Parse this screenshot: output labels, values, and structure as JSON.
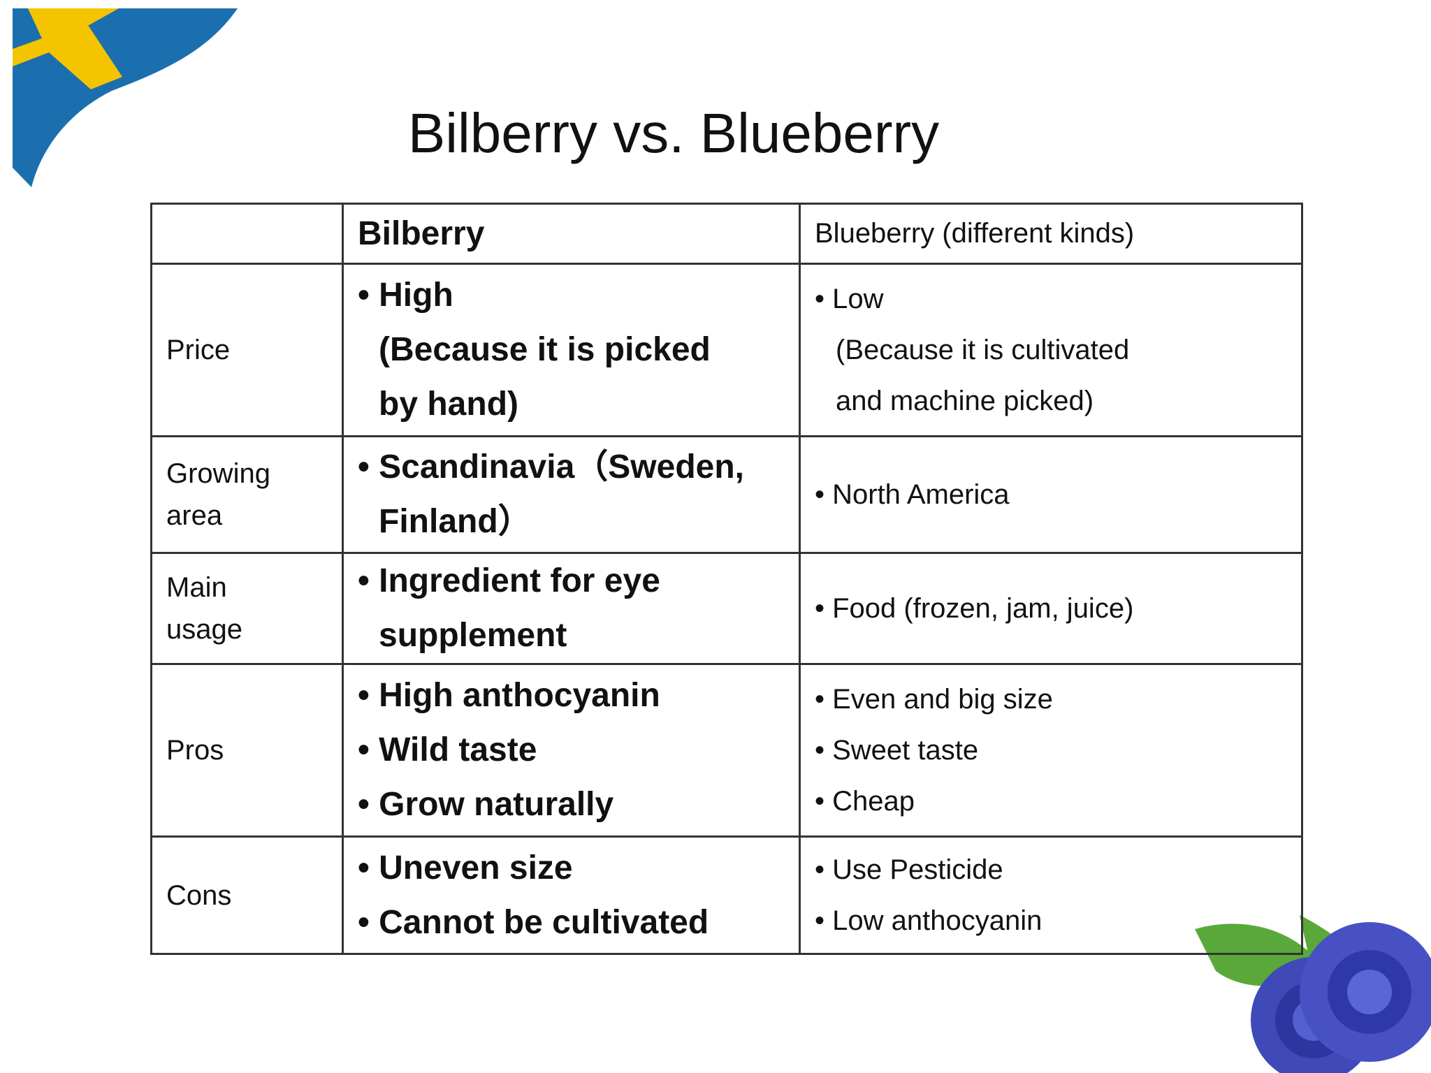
{
  "title": "Bilberry vs. Blueberry",
  "table": {
    "header": {
      "bilberry": "Bilberry",
      "blueberry": "Blueberry (different kinds)"
    },
    "rows": [
      {
        "label": [
          "Price"
        ],
        "bilberry": [
          "• High",
          "(Because it is picked",
          "by hand)"
        ],
        "blueberry": [
          "• Low",
          "(Because it is cultivated",
          "and machine picked)"
        ]
      },
      {
        "label": [
          "Growing",
          "area"
        ],
        "bilberry": [
          "• Scandinavia（Sweden,",
          "Finland）"
        ],
        "blueberry": [
          "• North America"
        ]
      },
      {
        "label": [
          "Main",
          "usage"
        ],
        "bilberry": [
          "• Ingredient for eye",
          "supplement"
        ],
        "blueberry": [
          "• Food (frozen, jam, juice)"
        ]
      },
      {
        "label": [
          "Pros"
        ],
        "bilberry": [
          "• High anthocyanin",
          "• Wild taste",
          "• Grow naturally"
        ],
        "blueberry": [
          "• Even and big size",
          "• Sweet taste",
          "• Cheap"
        ]
      },
      {
        "label": [
          "Cons"
        ],
        "bilberry": [
          "• Uneven size",
          "• Cannot be cultivated"
        ],
        "blueberry": [
          "• Use Pesticide",
          "• Low anthocyanin"
        ]
      }
    ]
  }
}
